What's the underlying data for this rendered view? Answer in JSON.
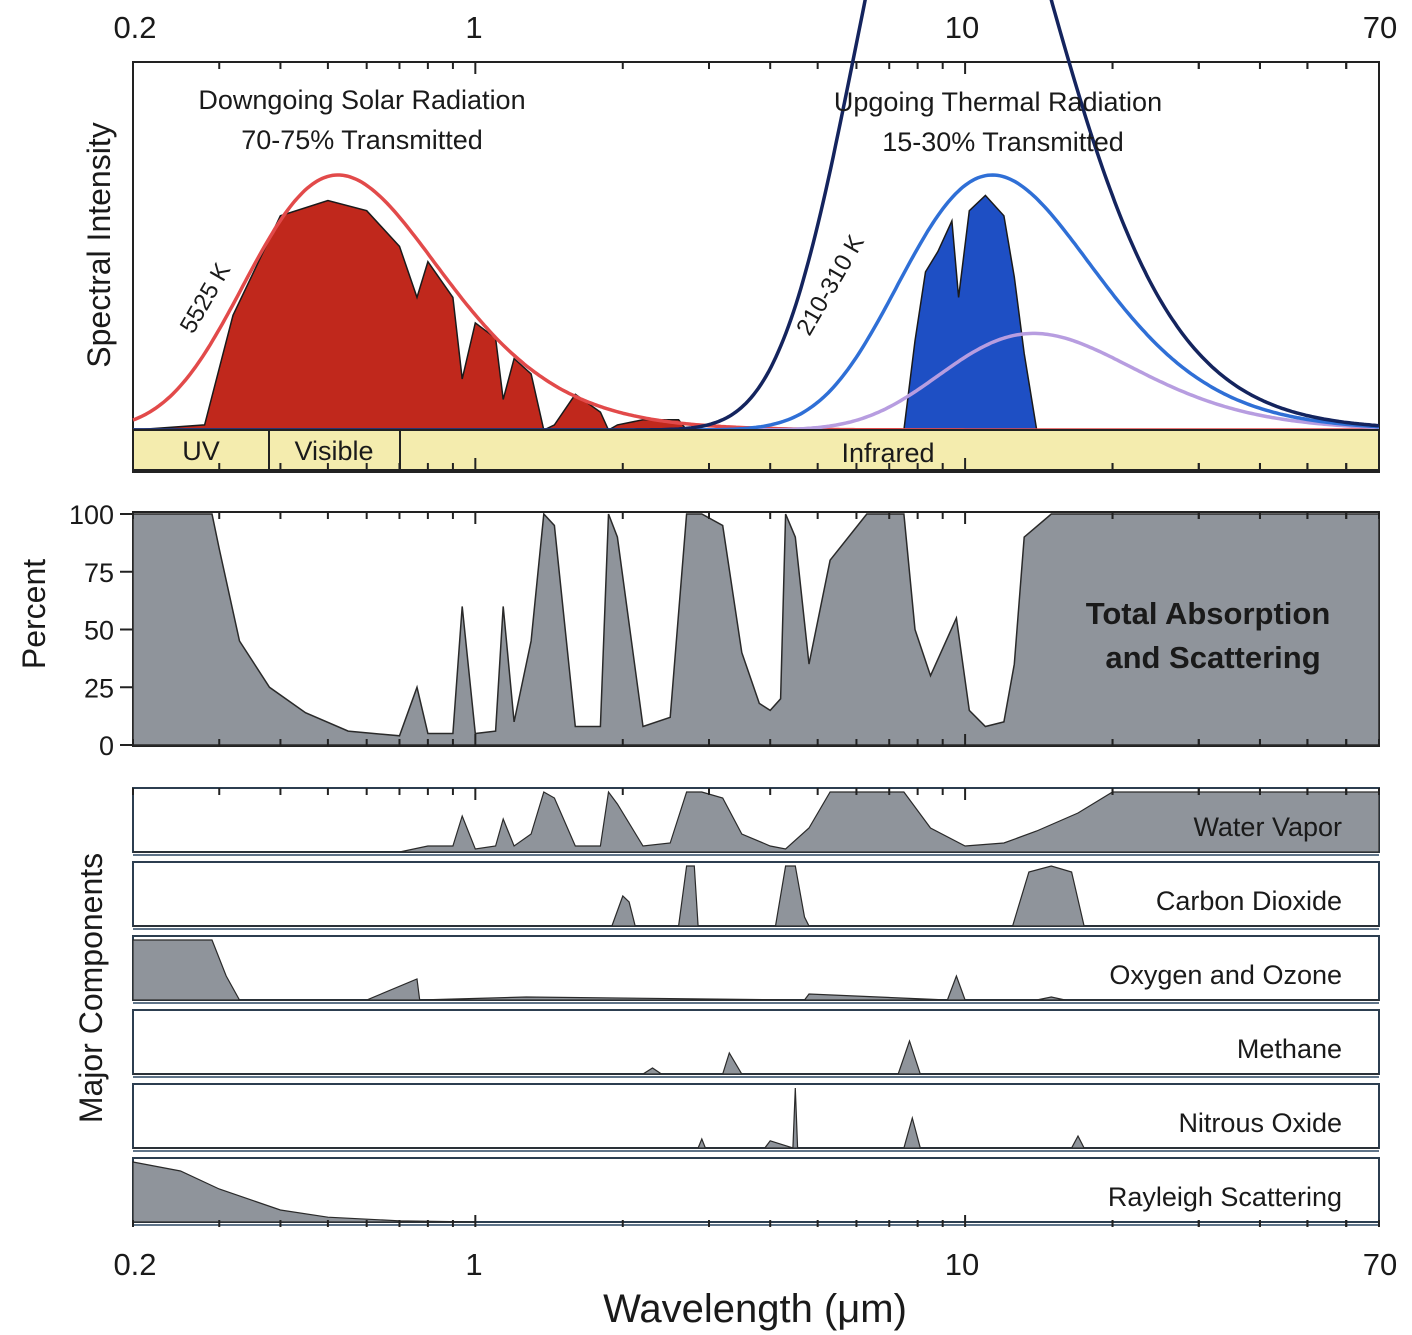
{
  "chart_data": {
    "type": "area",
    "x_scale": "log",
    "xlim": [
      0.2,
      70
    ],
    "x_ticks": [
      "0.2",
      "1",
      "10",
      "70"
    ],
    "xlabel": "Wavelength (μm)",
    "colors": {
      "solar": "#c0281c",
      "solar_curve": "#e24a4a",
      "thermal": "#1e4fc4",
      "curve_210K": "#b79de0",
      "curve_255K": "#2f6fd6",
      "curve_310K": "#14245e",
      "absorption": "#8f949b",
      "bands": "#f4ecae"
    },
    "panels": [
      {
        "name": "spectral-intensity",
        "ylabel": "Spectral Intensity",
        "annotations": {
          "solar": [
            "Downgoing Solar Radiation",
            "70-75% Transmitted"
          ],
          "thermal": [
            "Upgoing Thermal Radiation",
            "15-30% Transmitted"
          ],
          "solar_temp": "5525 K",
          "thermal_temp": "210-310 K"
        },
        "bands": [
          {
            "label": "UV",
            "from": 0.2,
            "to": 0.38
          },
          {
            "label": "Visible",
            "from": 0.38,
            "to": 0.7
          },
          {
            "label": "Infrared",
            "from": 0.7,
            "to": 70
          }
        ],
        "series": [
          {
            "key": "solar_bb",
            "temperature_K": 5525,
            "style": "curve"
          },
          {
            "key": "thermal_bb_210",
            "temperature_K": 210,
            "style": "curve"
          },
          {
            "key": "thermal_bb_255",
            "temperature_K": 255,
            "style": "curve"
          },
          {
            "key": "thermal_bb_310",
            "temperature_K": 310,
            "style": "curve"
          },
          {
            "key": "solar_transmitted",
            "style": "filled",
            "x": [
              0.2,
              0.28,
              0.32,
              0.4,
              0.5,
              0.6,
              0.7,
              0.76,
              0.8,
              0.9,
              0.94,
              1.0,
              1.1,
              1.14,
              1.2,
              1.3,
              1.38,
              1.45,
              1.6,
              1.8,
              1.87,
              1.95,
              2.2,
              2.6,
              2.7,
              2.9,
              3.5,
              4.0
            ],
            "y": [
              0,
              0.02,
              0.45,
              0.84,
              0.9,
              0.86,
              0.72,
              0.52,
              0.66,
              0.52,
              0.2,
              0.42,
              0.36,
              0.12,
              0.28,
              0.22,
              0,
              0.02,
              0.14,
              0.07,
              0,
              0.02,
              0.04,
              0.04,
              0,
              0,
              0,
              0
            ]
          },
          {
            "key": "thermal_transmitted",
            "style": "filled",
            "x": [
              7.5,
              7.9,
              8.3,
              8.8,
              9.4,
              9.7,
              10.2,
              11,
              12,
              12.6,
              13.2,
              14
            ],
            "y": [
              0,
              0.35,
              0.62,
              0.7,
              0.82,
              0.52,
              0.86,
              0.92,
              0.84,
              0.6,
              0.3,
              0
            ]
          }
        ]
      },
      {
        "name": "total-absorption",
        "title": [
          "Total Absorption",
          "and Scattering"
        ],
        "ylabel": "Percent",
        "ylim": [
          0,
          100
        ],
        "y_ticks": [
          "0",
          "25",
          "50",
          "75",
          "100"
        ],
        "x": [
          0.2,
          0.29,
          0.3,
          0.33,
          0.38,
          0.45,
          0.55,
          0.7,
          0.76,
          0.8,
          0.9,
          0.94,
          1.0,
          1.1,
          1.14,
          1.2,
          1.3,
          1.38,
          1.45,
          1.6,
          1.8,
          1.87,
          1.95,
          2.2,
          2.5,
          2.7,
          2.9,
          3.2,
          3.5,
          3.8,
          4.0,
          4.2,
          4.3,
          4.5,
          4.8,
          5.3,
          6.3,
          7.5,
          7.9,
          8.5,
          9.6,
          10.2,
          11,
          12,
          12.6,
          13.2,
          15,
          20,
          70
        ],
        "y": [
          100,
          100,
          85,
          45,
          25,
          14,
          6,
          4,
          25,
          5,
          5,
          60,
          5,
          6,
          60,
          10,
          45,
          100,
          95,
          8,
          8,
          100,
          90,
          8,
          12,
          100,
          100,
          95,
          40,
          18,
          15,
          20,
          100,
          90,
          35,
          80,
          100,
          100,
          50,
          30,
          55,
          15,
          8,
          10,
          35,
          90,
          100,
          100,
          100
        ]
      },
      {
        "name": "major-components",
        "ylabel": "Major Components",
        "components": [
          {
            "name": "Water Vapor",
            "x": [
              0.2,
              0.7,
              0.8,
              0.9,
              0.94,
              1.0,
              1.1,
              1.14,
              1.2,
              1.3,
              1.38,
              1.45,
              1.6,
              1.8,
              1.87,
              1.95,
              2.2,
              2.5,
              2.7,
              2.9,
              3.2,
              3.5,
              4.0,
              4.3,
              4.8,
              5.3,
              6.3,
              7.5,
              8.5,
              10,
              12,
              14,
              17,
              20,
              70
            ],
            "y": [
              0,
              0,
              10,
              10,
              60,
              5,
              10,
              55,
              10,
              30,
              100,
              90,
              10,
              10,
              100,
              80,
              10,
              15,
              100,
              100,
              90,
              30,
              10,
              5,
              40,
              100,
              100,
              100,
              40,
              10,
              15,
              35,
              65,
              100,
              100
            ]
          },
          {
            "name": "Carbon Dioxide",
            "x": [
              0.2,
              1.9,
              2.0,
              2.06,
              2.12,
              2.6,
              2.7,
              2.8,
              2.85,
              4.1,
              4.3,
              4.5,
              4.7,
              4.8,
              12.5,
              13.5,
              15,
              16.5,
              17.5,
              70
            ],
            "y": [
              0,
              0,
              50,
              40,
              0,
              0,
              100,
              100,
              0,
              0,
              100,
              100,
              15,
              0,
              0,
              90,
              100,
              90,
              0,
              0
            ]
          },
          {
            "name": "Oxygen and Ozone",
            "x": [
              0.2,
              0.29,
              0.31,
              0.33,
              0.6,
              0.76,
              0.77,
              1.27,
              4.7,
              4.8,
              9.2,
              9.6,
              10,
              14,
              15,
              16,
              70
            ],
            "y": [
              100,
              100,
              40,
              0,
              0,
              35,
              0,
              5,
              0,
              10,
              0,
              40,
              0,
              0,
              5,
              0,
              0
            ]
          },
          {
            "name": "Methane",
            "x": [
              0.2,
              2.2,
              2.3,
              2.4,
              3.2,
              3.3,
              3.5,
              7.3,
              7.7,
              8.1,
              70
            ],
            "y": [
              0,
              0,
              10,
              0,
              0,
              35,
              0,
              0,
              55,
              0,
              0
            ]
          },
          {
            "name": "Nitrous Oxide",
            "x": [
              0.2,
              2.85,
              2.9,
              2.95,
              3.9,
              4.0,
              4.45,
              4.5,
              4.55,
              7.5,
              7.8,
              8.1,
              16.5,
              17,
              17.5,
              70
            ],
            "y": [
              0,
              0,
              15,
              0,
              0,
              12,
              0,
              100,
              0,
              0,
              50,
              0,
              0,
              20,
              0,
              0
            ]
          },
          {
            "name": "Rayleigh Scattering",
            "x": [
              0.2,
              0.25,
              0.3,
              0.4,
              0.5,
              0.7,
              1.0
            ],
            "y": [
              100,
              85,
              55,
              20,
              8,
              2,
              0
            ]
          }
        ]
      }
    ]
  }
}
